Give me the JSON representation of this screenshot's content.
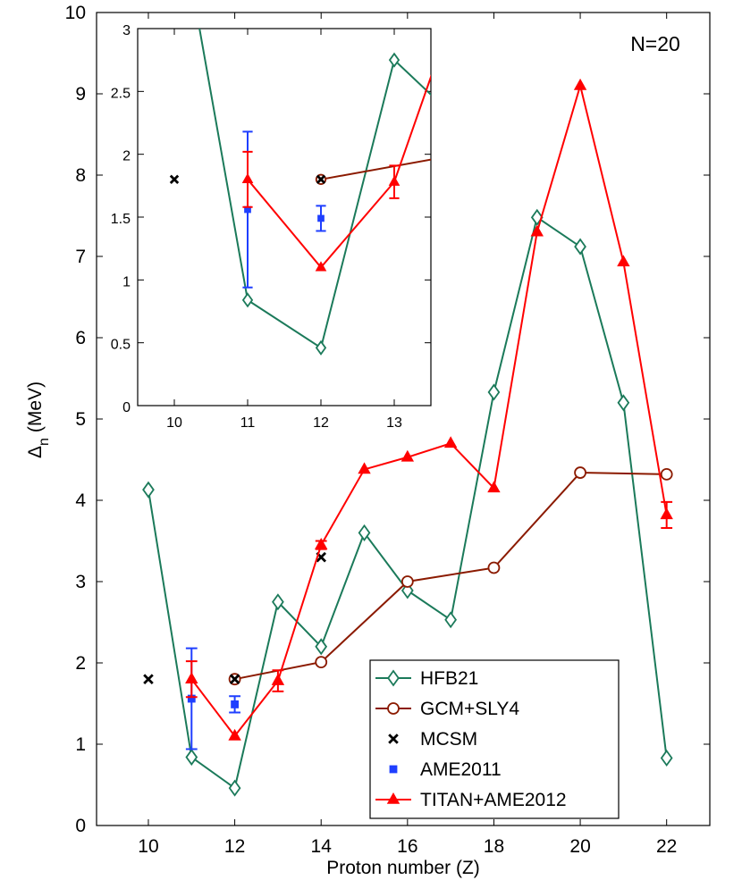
{
  "chart_data": {
    "type": "line",
    "annotation": "N=20",
    "xlabel": "Proton number (Z)",
    "ylabel_main": "Δ",
    "ylabel_sub": "n",
    "ylabel_unit": "(MeV)",
    "xlim": [
      8.8,
      23.0
    ],
    "ylim": [
      0,
      10
    ],
    "xticks": [
      "10",
      "12",
      "14",
      "16",
      "18",
      "20",
      "22"
    ],
    "yticks": [
      "0",
      "1",
      "2",
      "3",
      "4",
      "5",
      "6",
      "7",
      "8",
      "9",
      "10"
    ],
    "series": [
      {
        "name": "HFB21",
        "color": "#1b7a5a",
        "marker": "diamond",
        "line": true,
        "x": [
          10,
          11,
          12,
          13,
          14,
          15,
          16,
          17,
          18,
          19,
          20,
          21,
          22
        ],
        "y": [
          4.13,
          0.84,
          0.46,
          2.75,
          2.2,
          3.6,
          2.89,
          2.53,
          5.33,
          7.48,
          7.12,
          5.2,
          0.83
        ]
      },
      {
        "name": "GCM+SLY4",
        "color": "#8b1a00",
        "marker": "circle",
        "line": true,
        "x": [
          12,
          14,
          16,
          18,
          20,
          22
        ],
        "y": [
          1.8,
          2.01,
          3.0,
          3.17,
          4.34,
          4.32
        ]
      },
      {
        "name": "MCSM",
        "color": "#000000",
        "marker": "x",
        "line": false,
        "x": [
          10,
          12,
          14
        ],
        "y": [
          1.8,
          1.8,
          3.3
        ]
      },
      {
        "name": "AME2011",
        "color": "#1f3fff",
        "marker": "square",
        "line": false,
        "x": [
          11,
          12
        ],
        "y": [
          1.56,
          1.49
        ],
        "err": [
          0.62,
          0.1
        ]
      },
      {
        "name": "TITAN+AME2012",
        "color": "#ff0000",
        "marker": "triangle",
        "line": true,
        "x": [
          11,
          12,
          13,
          14,
          15,
          16,
          17,
          18,
          19,
          20,
          21,
          22
        ],
        "y": [
          1.8,
          1.1,
          1.78,
          3.45,
          4.38,
          4.53,
          4.7,
          4.15,
          7.3,
          9.1,
          6.93,
          3.82
        ],
        "err": [
          0.22,
          0.0,
          0.13,
          0.05,
          0.0,
          0.0,
          0.0,
          0.0,
          0.0,
          0.0,
          0.0,
          0.16
        ]
      }
    ],
    "inset": {
      "xlim": [
        9.5,
        13.5
      ],
      "ylim": [
        0,
        3
      ],
      "xticks": [
        "10",
        "11",
        "12",
        "13"
      ],
      "yticks": [
        "0",
        "0.5",
        "1",
        "1.5",
        "2",
        "2.5",
        "3"
      ]
    }
  }
}
